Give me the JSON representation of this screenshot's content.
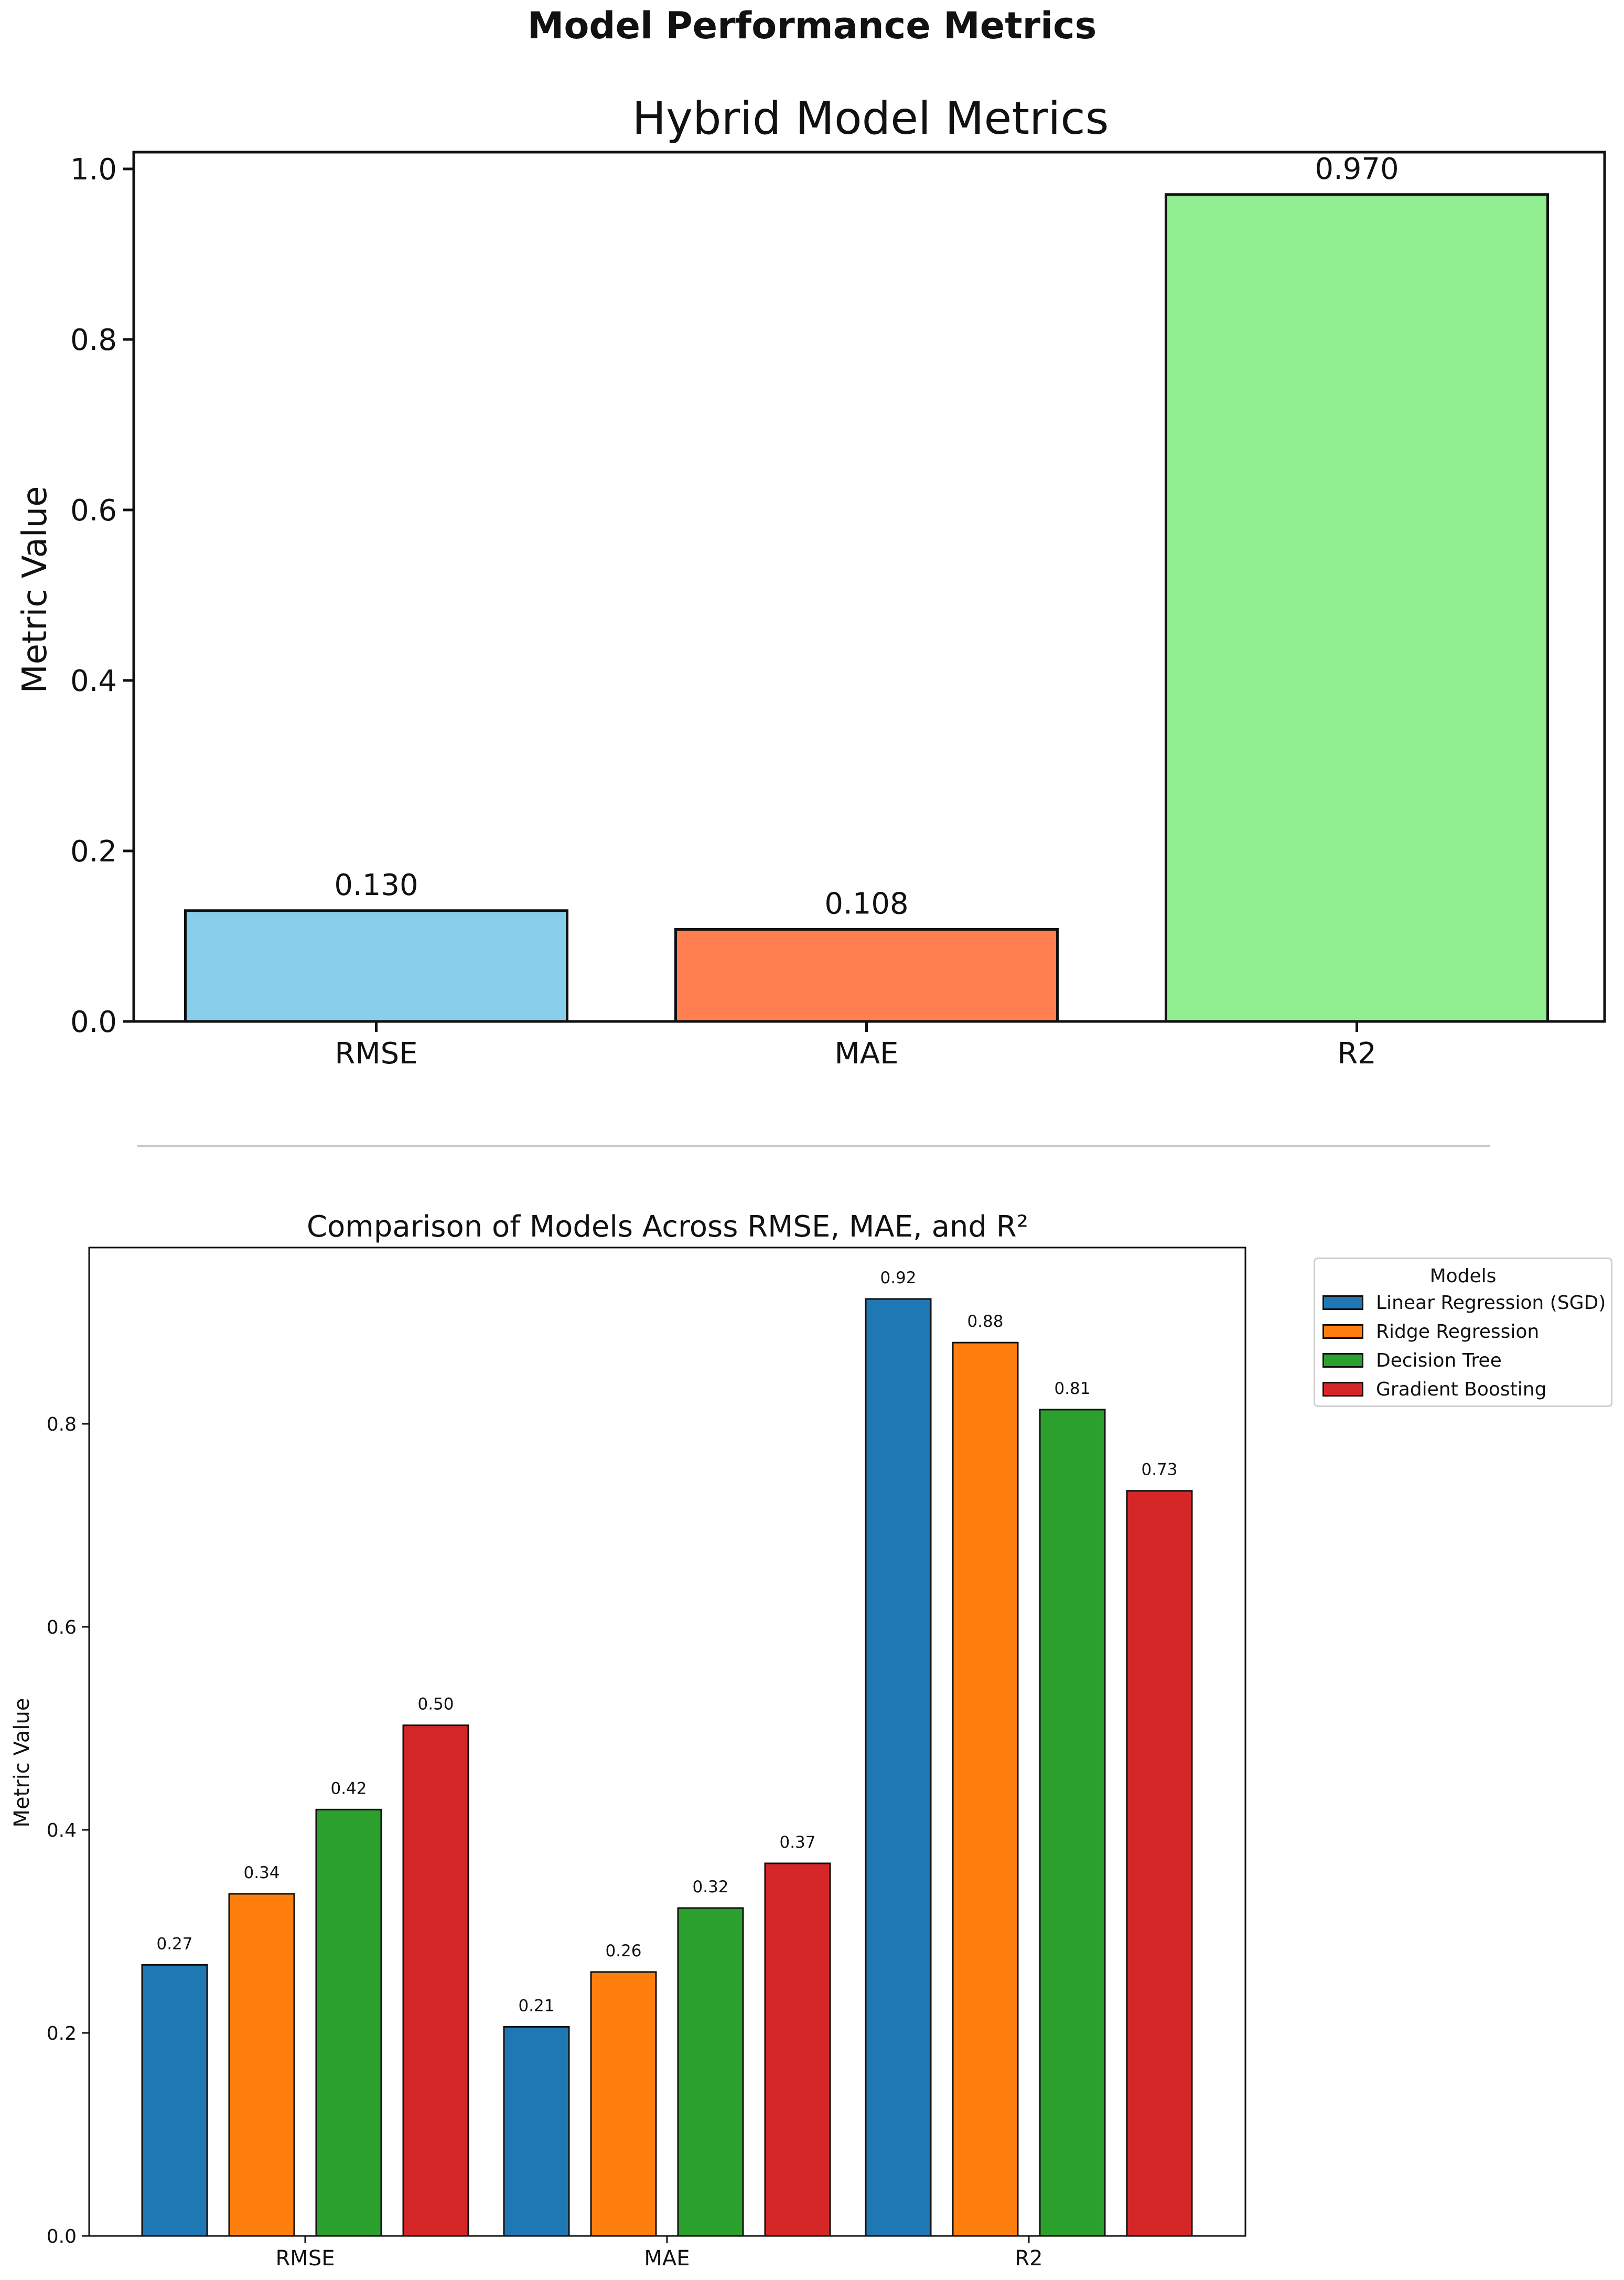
{
  "page_title": "Model Performance Metrics",
  "chart_data": [
    {
      "type": "bar",
      "title": "Hybrid Model Metrics",
      "xlabel": "",
      "ylabel": "Metric Value",
      "categories": [
        "RMSE",
        "MAE",
        "R2"
      ],
      "values": [
        0.13,
        0.108,
        0.97
      ],
      "value_labels": [
        "0.130",
        "0.108",
        "0.970"
      ],
      "colors": [
        "#87ceeb",
        "#ff7f50",
        "#90ee90"
      ],
      "ylim": [
        0,
        1.02
      ],
      "yticks": [
        0.0,
        0.2,
        0.4,
        0.6,
        0.8,
        1.0
      ],
      "ytick_labels": [
        "0.0",
        "0.2",
        "0.4",
        "0.6",
        "0.8",
        "1.0"
      ],
      "grid": false
    },
    {
      "type": "bar",
      "title": "Comparison of Models Across RMSE, MAE, and R²",
      "xlabel": "",
      "ylabel": "Metric Value",
      "categories": [
        "RMSE",
        "MAE",
        "R2"
      ],
      "series": [
        {
          "name": "Linear Regression (SGD)",
          "color": "#1f77b4",
          "values": [
            0.267,
            0.206,
            0.923
          ],
          "labels": [
            "0.27",
            "0.21",
            "0.92"
          ]
        },
        {
          "name": "Ridge Regression",
          "color": "#ff7f0e",
          "values": [
            0.337,
            0.26,
            0.88
          ],
          "labels": [
            "0.34",
            "0.26",
            "0.88"
          ]
        },
        {
          "name": "Decision Tree",
          "color": "#2ca02c",
          "values": [
            0.42,
            0.323,
            0.814
          ],
          "labels": [
            "0.42",
            "0.32",
            "0.81"
          ]
        },
        {
          "name": "Gradient Boosting",
          "color": "#d62728",
          "values": [
            0.503,
            0.367,
            0.734
          ],
          "labels": [
            "0.50",
            "0.37",
            "0.73"
          ]
        }
      ],
      "ylim": [
        0,
        0.97
      ],
      "yticks": [
        0.0,
        0.2,
        0.4,
        0.6,
        0.8
      ],
      "ytick_labels": [
        "0.0",
        "0.2",
        "0.4",
        "0.6",
        "0.8"
      ],
      "legend_title": "Models",
      "legend_position": "outside-top-right",
      "grid": false
    }
  ]
}
